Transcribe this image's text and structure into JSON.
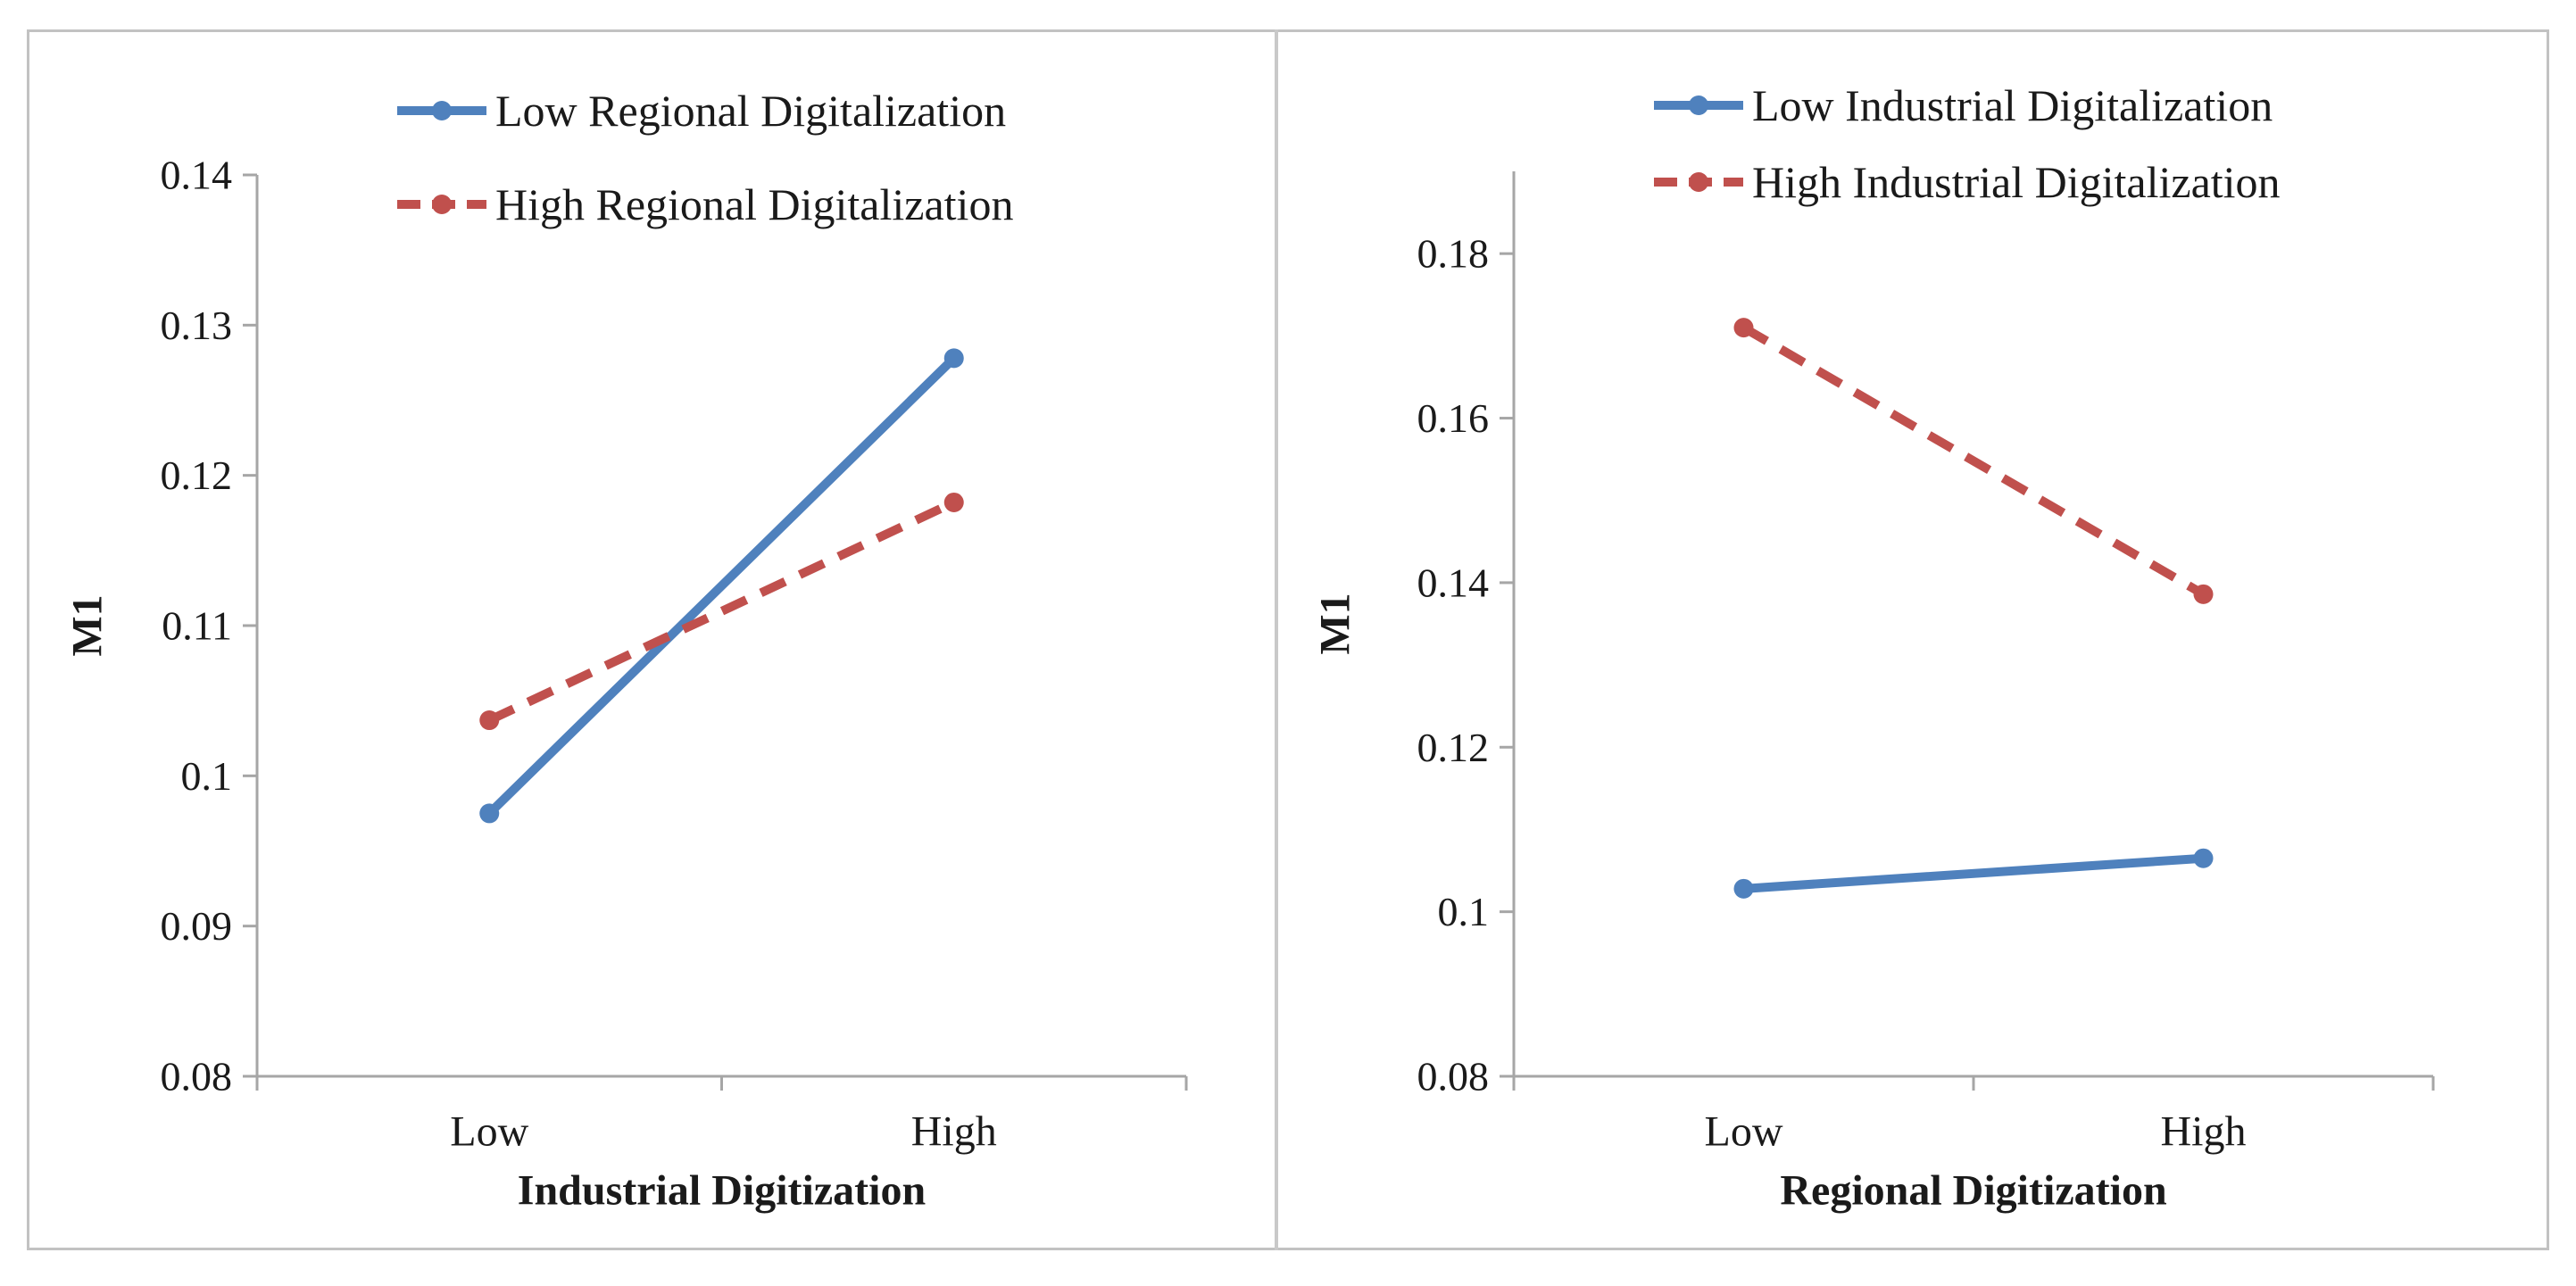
{
  "figure": {
    "background": "#ffffff",
    "border_color": "#c2c2c2",
    "axis_color": "#a6a6a6",
    "text_color": "#1a1a1a",
    "accent_blue": "#4F81BD",
    "accent_red": "#C0504D"
  },
  "chart_data": [
    {
      "type": "line",
      "title": "",
      "categories": [
        "Low",
        "High"
      ],
      "series": [
        {
          "name": "Low Regional Digitalization",
          "color": "#4F81BD",
          "line_style": "solid",
          "marker": "circle",
          "values": [
            0.0975,
            0.1278
          ]
        },
        {
          "name": "High Regional Digitalization",
          "color": "#C0504D",
          "line_style": "dashed",
          "marker": "circle",
          "values": [
            0.1037,
            0.1182
          ]
        }
      ],
      "xlabel": "Industrial Digitization",
      "ylabel": "M1",
      "ylim": [
        0.08,
        0.14
      ],
      "yticks": [
        "0.14",
        "0.13",
        "0.12",
        "0.11",
        "0.1",
        "0.09",
        "0.08"
      ],
      "legend_position": "top-center",
      "grid": false
    },
    {
      "type": "line",
      "title": "",
      "categories": [
        "Low",
        "High"
      ],
      "series": [
        {
          "name": "Low Industrial Digitalization",
          "color": "#4F81BD",
          "line_style": "solid",
          "marker": "circle",
          "values": [
            0.1028,
            0.1065
          ]
        },
        {
          "name": "High Industrial Digitalization",
          "color": "#C0504D",
          "line_style": "dashed",
          "marker": "circle",
          "values": [
            0.171,
            0.1386
          ]
        }
      ],
      "xlabel": "Regional Digitization",
      "ylabel": "M1",
      "ylim": [
        0.08,
        0.19
      ],
      "yticks": [
        "0.18",
        "0.16",
        "0.14",
        "0.12",
        "0.1",
        "0.08"
      ],
      "legend_position": "top-center",
      "grid": false
    }
  ]
}
